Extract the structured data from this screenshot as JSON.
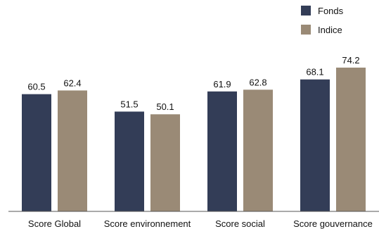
{
  "chart_data": {
    "type": "bar",
    "categories": [
      "Score Global",
      "Score environnement",
      "Score social",
      "Score gouvernance"
    ],
    "series": [
      {
        "name": "Fonds",
        "values": [
          60.5,
          51.5,
          61.9,
          68.1
        ],
        "value_labels": [
          "60.5",
          "51.5",
          "61.9",
          "68.1"
        ],
        "color": "#333d57"
      },
      {
        "name": "Indice",
        "values": [
          62.4,
          50.1,
          62.8,
          74.2
        ],
        "value_labels": [
          "62.4",
          "50.1",
          "62.8",
          "74.2"
        ],
        "color": "#9a8a76"
      }
    ],
    "ylim": [
      0,
      80
    ],
    "grid": false,
    "legend_position": "top-right"
  }
}
